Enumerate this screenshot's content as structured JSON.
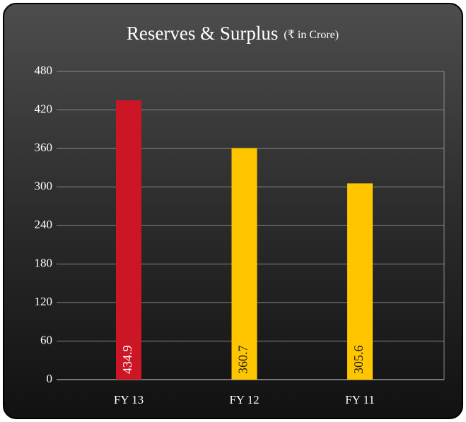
{
  "chart_data": {
    "type": "bar",
    "title": "Reserves & Surplus",
    "subtitle": "(₹ in Crore)",
    "categories": [
      "FY 13",
      "FY 12",
      "FY 11"
    ],
    "values": [
      434.9,
      360.7,
      305.6
    ],
    "colors": [
      "#cc1626",
      "#ffc600",
      "#ffc600"
    ],
    "ylim": [
      0,
      480
    ],
    "yticks": [
      0,
      60,
      120,
      180,
      240,
      300,
      360,
      420,
      480
    ],
    "grid": true
  }
}
